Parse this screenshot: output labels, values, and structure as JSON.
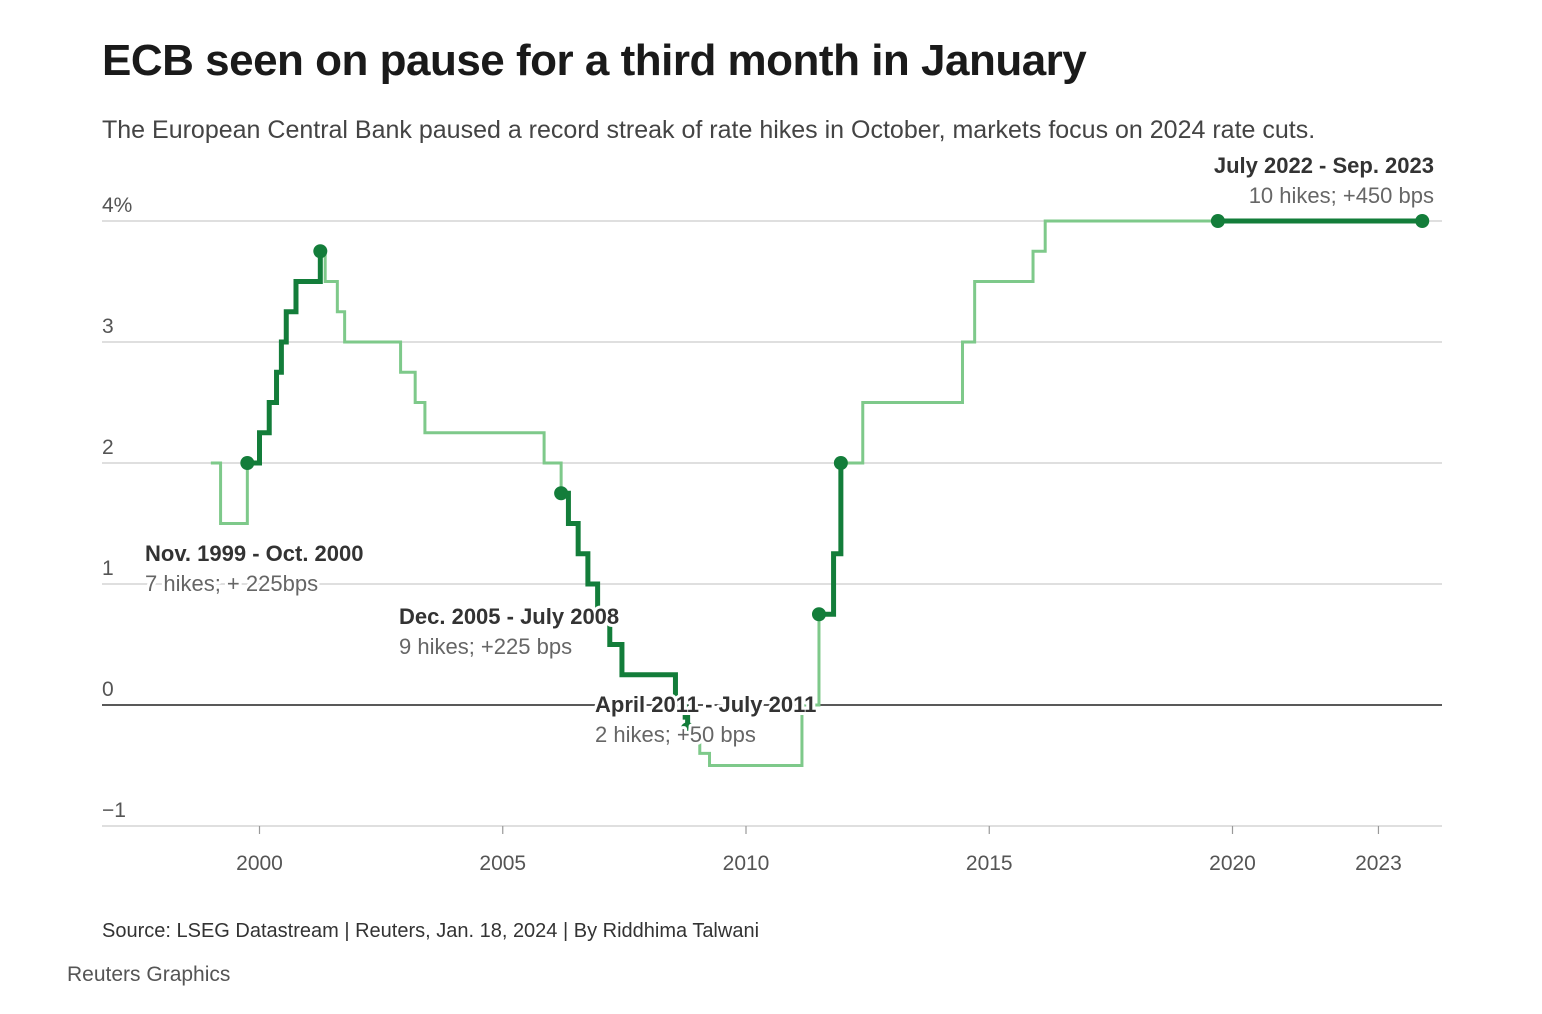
{
  "header": {
    "title": "ECB seen on pause for a third month in January",
    "subtitle": "The European Central Bank paused a record streak of rate hikes in October, markets focus on 2024 rate cuts."
  },
  "footer": {
    "source": "Source: LSEG Datastream | Reuters, Jan. 18, 2024 | By Riddhima Talwani",
    "credit": "Reuters Graphics"
  },
  "chart_data": {
    "type": "line",
    "step": true,
    "title": "ECB seen on pause for a third month in January",
    "subtitle": "The European Central Bank paused a record streak of rate hikes in October, markets focus on 2024 rate cuts.",
    "ylim": [
      -1,
      4
    ],
    "xlim": [
      1996.8,
      2024.3
    ],
    "y_ticks": [
      -1,
      0,
      1,
      2,
      3,
      4
    ],
    "y_tick_labels": [
      "−1",
      "0",
      "1",
      "2",
      "3",
      "4%"
    ],
    "x_ticks": [
      2000,
      2005,
      2010,
      2015,
      2020,
      2023
    ],
    "x_tick_labels": [
      "2000",
      "2005",
      "2010",
      "2015",
      "2020",
      "2023"
    ],
    "grid": "horizontal",
    "colors": {
      "hike": "#137d3a",
      "rate": "#7ec98a",
      "grid": "#cccccc",
      "zero": "#222222"
    },
    "series": [
      {
        "x": [
          1999.0,
          1999.2,
          1999.75,
          2000.0,
          2000.2,
          2000.35,
          2000.45,
          2000.55,
          2000.75,
          2001.25,
          2001.35,
          2001.6,
          2001.75,
          2002.9,
          2003.2,
          2003.4,
          2005.85,
          2006.2,
          2006.35,
          2006.55,
          2006.75,
          2006.95,
          2007.2,
          2007.45,
          2008.55,
          2008.75,
          2008.8,
          2008.9,
          2009.05,
          2009.25,
          2009.35,
          2011.15,
          2011.5,
          2011.8,
          2011.95,
          2012.4,
          2014.45,
          2014.7,
          2015.9,
          2016.15,
          2019.7,
          2022.5,
          2022.6,
          2022.75,
          2022.9,
          2023.05,
          2023.2,
          2023.35,
          2023.45,
          2023.6,
          2023.75,
          2023.9
        ],
        "y": [
          2.0,
          1.5,
          2.0,
          2.25,
          2.5,
          2.75,
          3.0,
          3.25,
          3.5,
          3.75,
          3.5,
          3.25,
          3.0,
          2.75,
          2.5,
          2.25,
          2.0,
          1.75,
          1.5,
          1.25,
          1.0,
          0.75,
          0.5,
          0.25,
          0.0,
          -0.1,
          -0.2,
          -0.3,
          -0.4,
          -0.5,
          -0.5,
          0.0,
          0.75,
          1.25,
          2.0,
          2.5,
          3.0,
          3.5,
          3.75,
          4.0,
          4.0,
          4.0,
          4.0,
          4.0,
          4.0,
          4.0,
          4.0,
          4.0,
          4.0,
          4.0,
          4.0,
          4.0
        ]
      }
    ],
    "hike_periods": [
      {
        "label": "Nov. 1999 - Oct. 2000",
        "detail": "7 hikes; + 225bps"
      },
      {
        "label": "Dec. 2005 - July 2008",
        "detail": "9 hikes; +225 bps"
      },
      {
        "label": "April 2011 - July 2011",
        "detail": "2 hikes; +50 bps"
      },
      {
        "label": "July 2022 - Sep. 2023",
        "detail": "10 hikes; +450 bps"
      }
    ]
  }
}
